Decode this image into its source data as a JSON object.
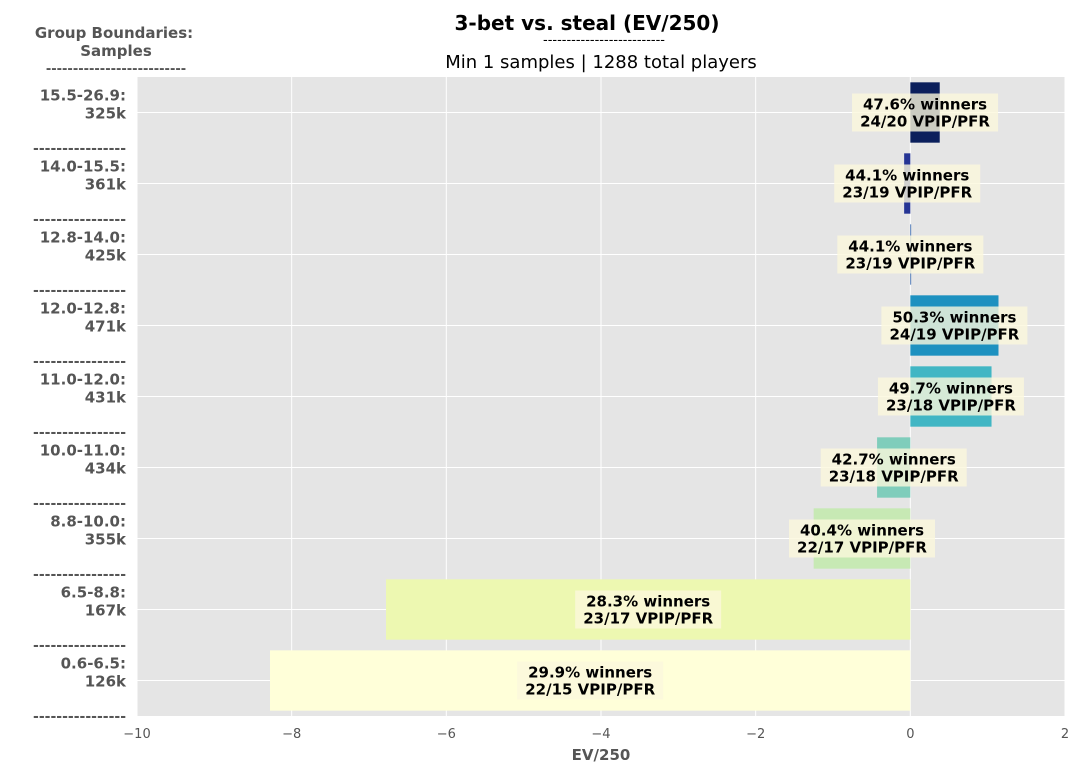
{
  "chart_data": {
    "type": "bar",
    "orientation": "horizontal",
    "title": "3-bet vs. steal (EV/250)",
    "title_rule": "--------------------------",
    "subtitle": "Min 1 samples | 1288 total players",
    "xlabel": "EV/250",
    "xlim": [
      -10,
      2
    ],
    "xticks": [
      "−10",
      "−8",
      "−6",
      "−4",
      "−2",
      "0",
      "2"
    ],
    "xtick_values": [
      -10,
      -8,
      -6,
      -4,
      -2,
      0,
      2
    ],
    "grid": true,
    "group_header": {
      "line1": "Group Boundaries:",
      "line2": "Samples",
      "rule": "--------------------------"
    },
    "row_separator": "----------------",
    "groups": [
      {
        "range": "15.5-26.9:",
        "samples": "325k",
        "value": 0.38,
        "color": "#0b1f5c",
        "winners": "47.6% winners",
        "vpip_pfr": "24/20 VPIP/PFR"
      },
      {
        "range": "14.0-15.5:",
        "samples": "361k",
        "value": -0.08,
        "color": "#253494",
        "winners": "44.1% winners",
        "vpip_pfr": "23/19 VPIP/PFR"
      },
      {
        "range": "12.8-14.0:",
        "samples": "425k",
        "value": 0.0,
        "color": "#2c5fa8",
        "winners": "44.1% winners",
        "vpip_pfr": "23/19 VPIP/PFR"
      },
      {
        "range": "12.0-12.8:",
        "samples": "471k",
        "value": 1.14,
        "color": "#1d91c0",
        "winners": "50.3% winners",
        "vpip_pfr": "24/19 VPIP/PFR"
      },
      {
        "range": "11.0-12.0:",
        "samples": "431k",
        "value": 1.05,
        "color": "#41b6c4",
        "winners": "49.7% winners",
        "vpip_pfr": "23/18 VPIP/PFR"
      },
      {
        "range": "10.0-11.0:",
        "samples": "434k",
        "value": -0.43,
        "color": "#7fcdbb",
        "winners": "42.7% winners",
        "vpip_pfr": "23/18 VPIP/PFR"
      },
      {
        "range": "8.8-10.0:",
        "samples": "355k",
        "value": -1.25,
        "color": "#c7e9b4",
        "winners": "40.4% winners",
        "vpip_pfr": "22/17 VPIP/PFR"
      },
      {
        "range": "6.5-8.8:",
        "samples": "167k",
        "value": -6.78,
        "color": "#edf8b1",
        "winners": "28.3% winners",
        "vpip_pfr": "23/17 VPIP/PFR"
      },
      {
        "range": "0.6-6.5:",
        "samples": "126k",
        "value": -8.28,
        "color": "#ffffd9",
        "winners": "29.9% winners",
        "vpip_pfr": "22/15 VPIP/PFR"
      }
    ]
  }
}
